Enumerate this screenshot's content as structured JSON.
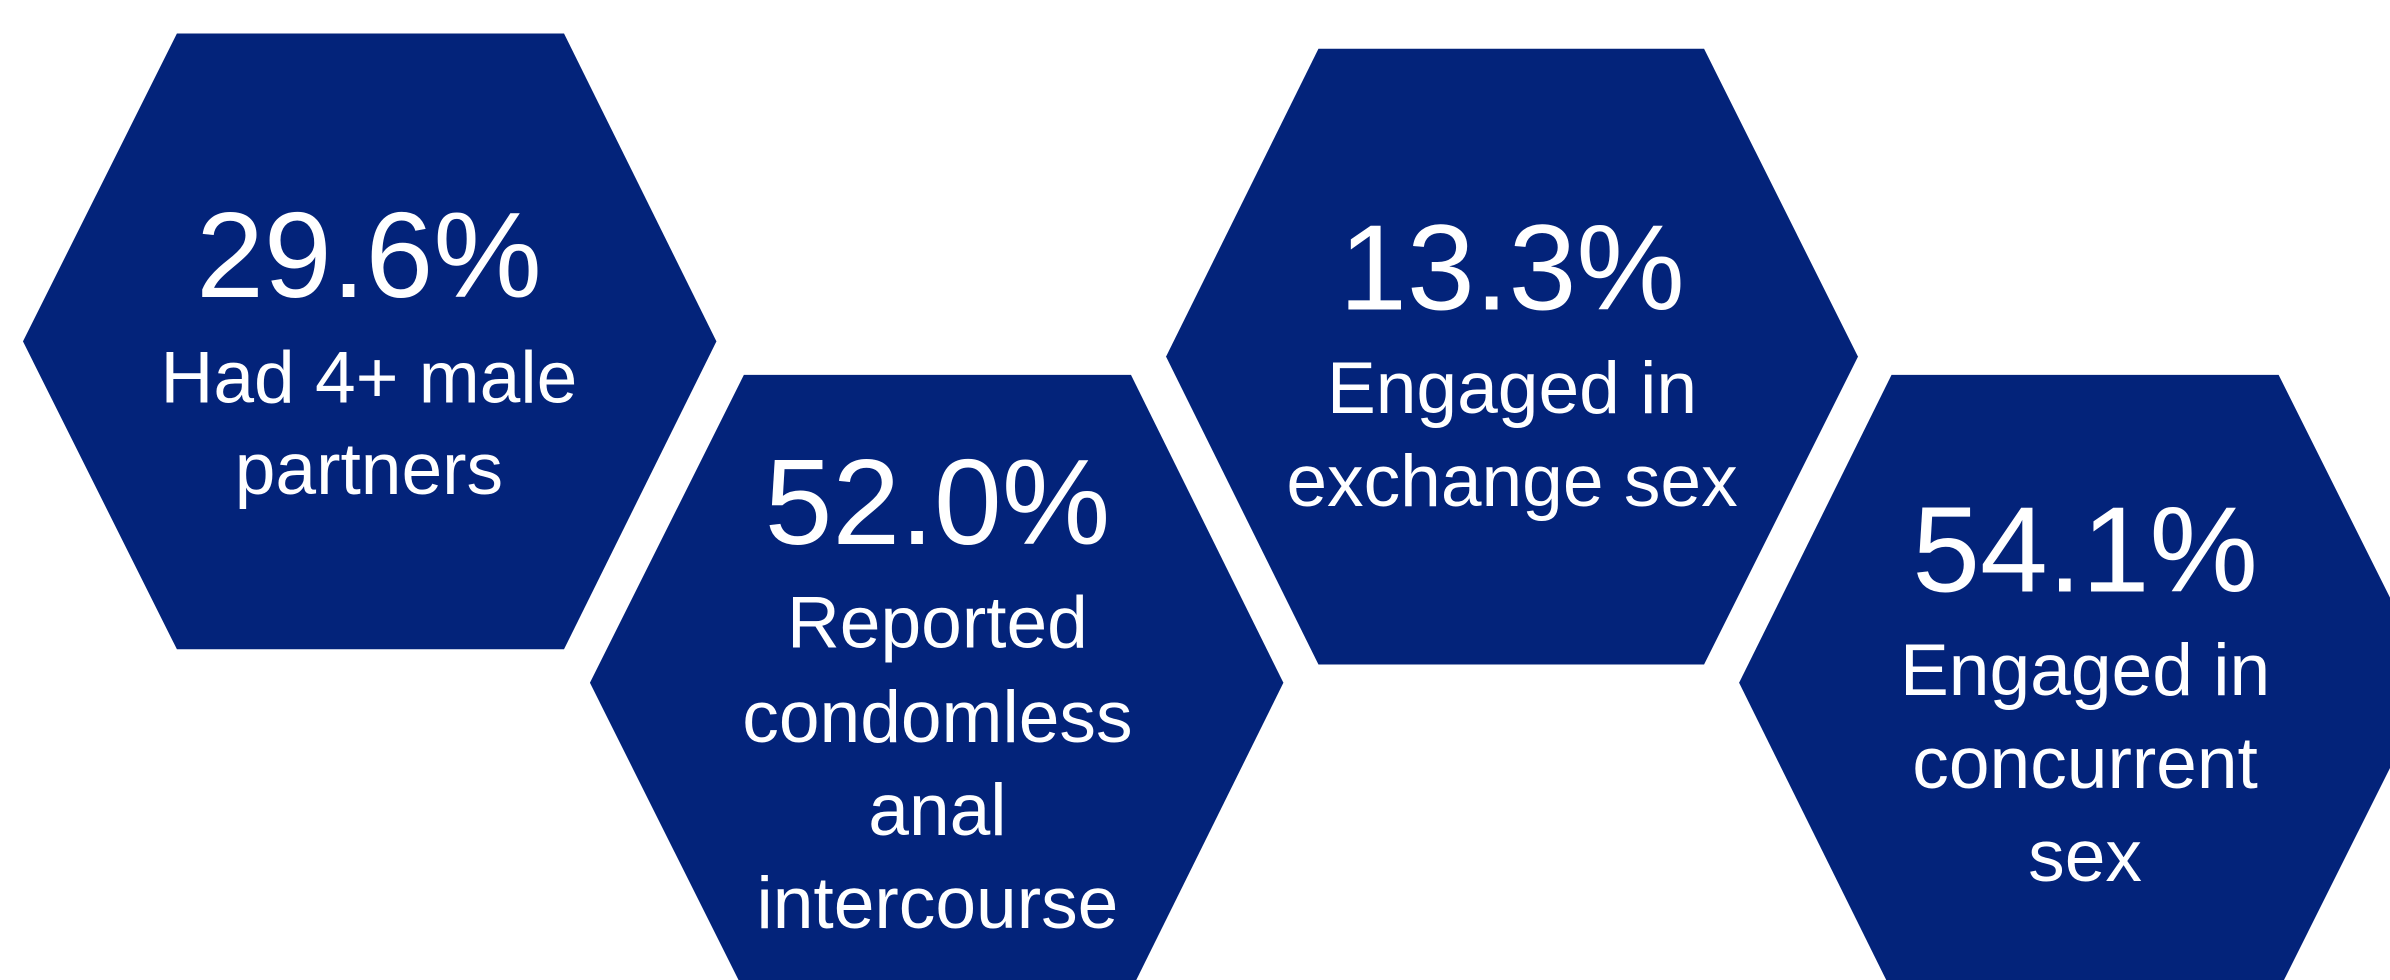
{
  "items": [
    {
      "value": "29.6%",
      "lines": [
        "Had 4+ male",
        "partners"
      ]
    },
    {
      "value": "52.0%",
      "lines": [
        "Reported",
        "condomless",
        "anal",
        "intercourse"
      ]
    },
    {
      "value": "13.3%",
      "lines": [
        "Engaged in",
        "exchange sex"
      ]
    },
    {
      "value": "54.1%",
      "lines": [
        "Engaged in",
        "concurrent",
        "sex"
      ]
    }
  ]
}
